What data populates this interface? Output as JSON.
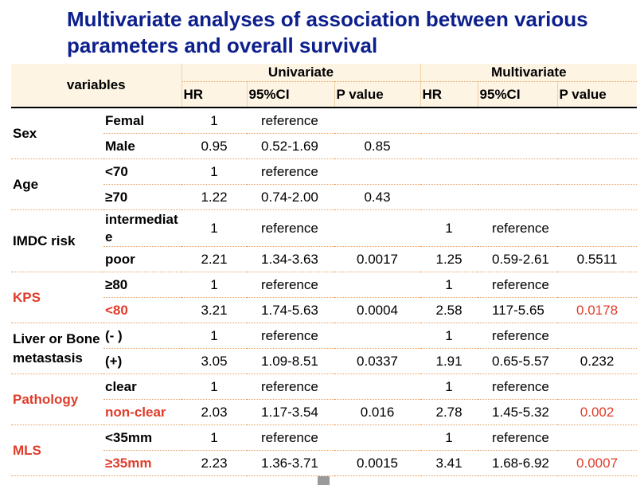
{
  "title": "Multivariate analyses of association between various parameters and overall survival",
  "table": {
    "header": {
      "variables": "variables",
      "univariate": "Univariate",
      "multivariate": "Multivariate",
      "columns": [
        "HR",
        "95%CI",
        "P value",
        "HR",
        "95%CI",
        "P value"
      ]
    },
    "groups": [
      {
        "variable": "Sex",
        "rows": [
          {
            "level": "Femal",
            "uni": {
              "hr": "1",
              "ci": "reference"
            }
          },
          {
            "level": "Male",
            "uni": {
              "hr": "0.95",
              "ci": "0.52-1.69",
              "p": "0.85"
            }
          }
        ]
      },
      {
        "variable": "Age",
        "rows": [
          {
            "level": "<70",
            "uni": {
              "hr": "1",
              "ci": "reference"
            }
          },
          {
            "level": "≥70",
            "uni": {
              "hr": "1.22",
              "ci": "0.74-2.00",
              "p": "0.43"
            }
          }
        ]
      },
      {
        "variable": "IMDC risk",
        "rows": [
          {
            "level": "intermediate",
            "uni": {
              "hr": "1",
              "ci": "reference"
            },
            "multi": {
              "hr": "1",
              "ci": "reference"
            }
          },
          {
            "level": "poor",
            "uni": {
              "hr": "2.21",
              "ci": "1.34-3.63",
              "p": "0.0017"
            },
            "multi": {
              "hr": "1.25",
              "ci": "0.59-2.61",
              "p": "0.5511"
            }
          }
        ]
      },
      {
        "variable": "KPS",
        "rows": [
          {
            "level": "≥80",
            "uni": {
              "hr": "1",
              "ci": "reference"
            },
            "multi": {
              "hr": "1",
              "ci": "reference"
            }
          },
          {
            "level": "<80",
            "uni": {
              "hr": "3.21",
              "ci": "1.74-5.63",
              "p": "0.0004"
            },
            "multi": {
              "hr": "2.58",
              "ci": "117-5.65",
              "p": "0.0178"
            }
          }
        ]
      },
      {
        "variable": "Liver or Bone metastasis",
        "rows": [
          {
            "level": "(- )",
            "uni": {
              "hr": "1",
              "ci": "reference"
            },
            "multi": {
              "hr": "1",
              "ci": "reference"
            }
          },
          {
            "level": "(+)",
            "uni": {
              "hr": "3.05",
              "ci": "1.09-8.51",
              "p": "0.0337"
            },
            "multi": {
              "hr": "1.91",
              "ci": "0.65-5.57",
              "p": "0.232"
            }
          }
        ]
      },
      {
        "variable": "Pathology",
        "rows": [
          {
            "level": "clear",
            "uni": {
              "hr": "1",
              "ci": "reference"
            },
            "multi": {
              "hr": "1",
              "ci": "reference"
            }
          },
          {
            "level": "non-clear",
            "uni": {
              "hr": "2.03",
              "ci": "1.17-3.54",
              "p": "0.016"
            },
            "multi": {
              "hr": "2.78",
              "ci": "1.45-5.32",
              "p": "0.002"
            }
          }
        ]
      },
      {
        "variable": "MLS",
        "rows": [
          {
            "level": "<35mm",
            "uni": {
              "hr": "1",
              "ci": "reference"
            },
            "multi": {
              "hr": "1",
              "ci": "reference"
            }
          },
          {
            "level": "≥35mm",
            "uni": {
              "hr": "2.23",
              "ci": "1.36-3.71",
              "p": "0.0015"
            },
            "multi": {
              "hr": "3.41",
              "ci": "1.68-6.92",
              "p": "0.0007"
            }
          }
        ]
      }
    ]
  }
}
